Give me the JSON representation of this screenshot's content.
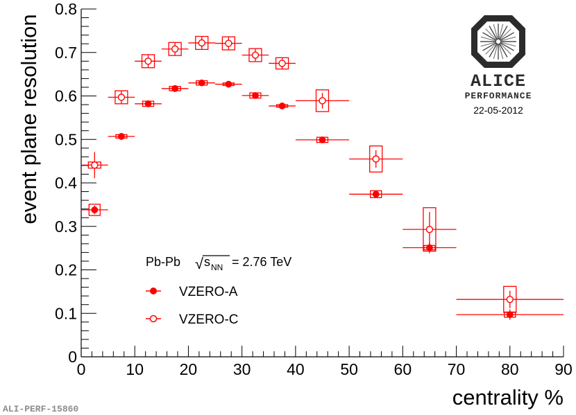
{
  "chart_data": {
    "type": "scatter",
    "title": "",
    "xlabel": "centrality %",
    "ylabel": "event plane resolution",
    "xlim": [
      0,
      90
    ],
    "ylim": [
      0,
      0.8
    ],
    "x_ticks": [
      "0",
      "10",
      "20",
      "30",
      "40",
      "50",
      "60",
      "70",
      "80",
      "90"
    ],
    "y_ticks": [
      "0",
      "0.1",
      "0.2",
      "0.3",
      "0.4",
      "0.5",
      "0.6",
      "0.7",
      "0.8"
    ],
    "grid": false,
    "legend_position": "bottom-left",
    "system_label": {
      "collision": "Pb-Pb",
      "sqrt_symbol": "√",
      "s_symbol": "s",
      "nn_subscript": "NN",
      "energy": "= 2.76 TeV"
    },
    "series": [
      {
        "name": "VZERO-A",
        "marker": "filled-circle",
        "points": [
          {
            "x": 2.5,
            "xerr": 2.5,
            "y": 0.338,
            "stat": 0.01,
            "sys": 0.013
          },
          {
            "x": 7.5,
            "xerr": 2.5,
            "y": 0.507,
            "stat": 0.008,
            "sys": 0.004
          },
          {
            "x": 12.5,
            "xerr": 2.5,
            "y": 0.582,
            "stat": 0.006,
            "sys": 0.006
          },
          {
            "x": 17.5,
            "xerr": 2.5,
            "y": 0.617,
            "stat": 0.005,
            "sys": 0.005
          },
          {
            "x": 22.5,
            "xerr": 2.5,
            "y": 0.63,
            "stat": 0.005,
            "sys": 0.005
          },
          {
            "x": 27.5,
            "xerr": 2.5,
            "y": 0.627,
            "stat": 0.005,
            "sys": 0.003
          },
          {
            "x": 32.5,
            "xerr": 2.5,
            "y": 0.601,
            "stat": 0.005,
            "sys": 0.006
          },
          {
            "x": 37.5,
            "xerr": 2.5,
            "y": 0.577,
            "stat": 0.005,
            "sys": 0.003
          },
          {
            "x": 45,
            "xerr": 5,
            "y": 0.499,
            "stat": 0.005,
            "sys": 0.006
          },
          {
            "x": 55,
            "xerr": 5,
            "y": 0.374,
            "stat": 0.006,
            "sys": 0.008
          },
          {
            "x": 65,
            "xerr": 5,
            "y": 0.251,
            "stat": 0.013,
            "sys": 0.005
          },
          {
            "x": 80,
            "xerr": 10,
            "y": 0.097,
            "stat": 0.012,
            "sys": 0.006
          }
        ]
      },
      {
        "name": "VZERO-C",
        "marker": "open-circle",
        "points": [
          {
            "x": 2.5,
            "xerr": 2.5,
            "y": 0.441,
            "stat": 0.03,
            "sys": 0.007
          },
          {
            "x": 7.5,
            "xerr": 2.5,
            "y": 0.597,
            "stat": 0.015,
            "sys": 0.015
          },
          {
            "x": 12.5,
            "xerr": 2.5,
            "y": 0.68,
            "stat": 0.015,
            "sys": 0.015
          },
          {
            "x": 17.5,
            "xerr": 2.5,
            "y": 0.708,
            "stat": 0.015,
            "sys": 0.015
          },
          {
            "x": 22.5,
            "xerr": 2.5,
            "y": 0.722,
            "stat": 0.014,
            "sys": 0.015
          },
          {
            "x": 27.5,
            "xerr": 2.5,
            "y": 0.721,
            "stat": 0.014,
            "sys": 0.015
          },
          {
            "x": 32.5,
            "xerr": 2.5,
            "y": 0.694,
            "stat": 0.014,
            "sys": 0.015
          },
          {
            "x": 37.5,
            "xerr": 2.5,
            "y": 0.675,
            "stat": 0.014,
            "sys": 0.013
          },
          {
            "x": 45,
            "xerr": 5,
            "y": 0.589,
            "stat": 0.018,
            "sys": 0.025
          },
          {
            "x": 55,
            "xerr": 5,
            "y": 0.455,
            "stat": 0.02,
            "sys": 0.03
          },
          {
            "x": 65,
            "xerr": 5,
            "y": 0.293,
            "stat": 0.04,
            "sys": 0.05
          },
          {
            "x": 80,
            "xerr": 10,
            "y": 0.132,
            "stat": 0.02,
            "sys": 0.03
          }
        ]
      }
    ]
  },
  "branding": {
    "experiment": "ALICE",
    "label": "PERFORMANCE",
    "date": "22-05-2012",
    "figure_id": "ALI-PERF-15860"
  },
  "colors": {
    "series": "#ff0000",
    "axis": "#000000",
    "logo_dark": "#2b2b2b",
    "logo_mid": "#7a7a7a",
    "figure_id": "#8c8c8c"
  }
}
